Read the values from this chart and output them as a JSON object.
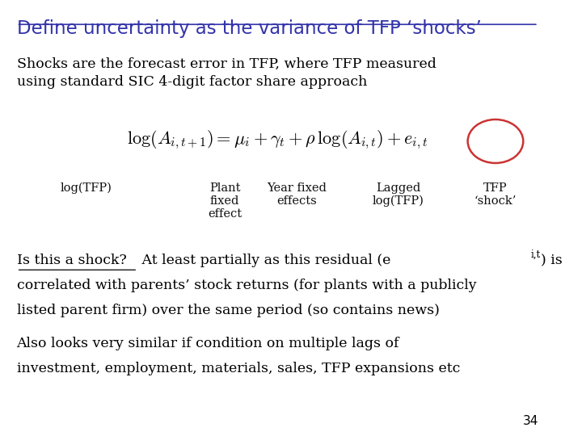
{
  "title": "Define uncertainty as the variance of TFP ‘shocks’",
  "title_color": "#3333aa",
  "bg_color": "#ffffff",
  "body_color": "#000000",
  "line1": "Shocks are the forecast error in TFP, where TFP measured",
  "line2": "using standard SIC 4-digit factor share approach",
  "label_logtfp": "log(TFP)",
  "label_plant": "Plant\nfixed\neffect",
  "label_year": "Year fixed\neffects",
  "label_lagged": "Lagged\nlog(TFP)",
  "label_tfp_shock": "TFP\n‘shock’",
  "paragraph1_line1_underlined": "Is this a shock?",
  "paragraph1_line1_rest": " At least partially as this residual (e",
  "paragraph1_line1_sub": "i,t",
  "paragraph1_line1_end": ") is",
  "paragraph1_line2": "correlated with parents’ stock returns (for plants with a publicly",
  "paragraph1_line3": "listed parent firm) over the same period (so contains news)",
  "paragraph2_line1": "Also looks very similar if condition on multiple lags of",
  "paragraph2_line2": "investment, employment, materials, sales, TFP expansions etc",
  "page_number": "34",
  "circle_color": "#cc3333",
  "formula": "$\\log(A_{i,t+1}) = \\mu_i + \\gamma_t + \\rho\\,\\log(A_{i,t}) + \\mathit{e}_{i,t}$"
}
